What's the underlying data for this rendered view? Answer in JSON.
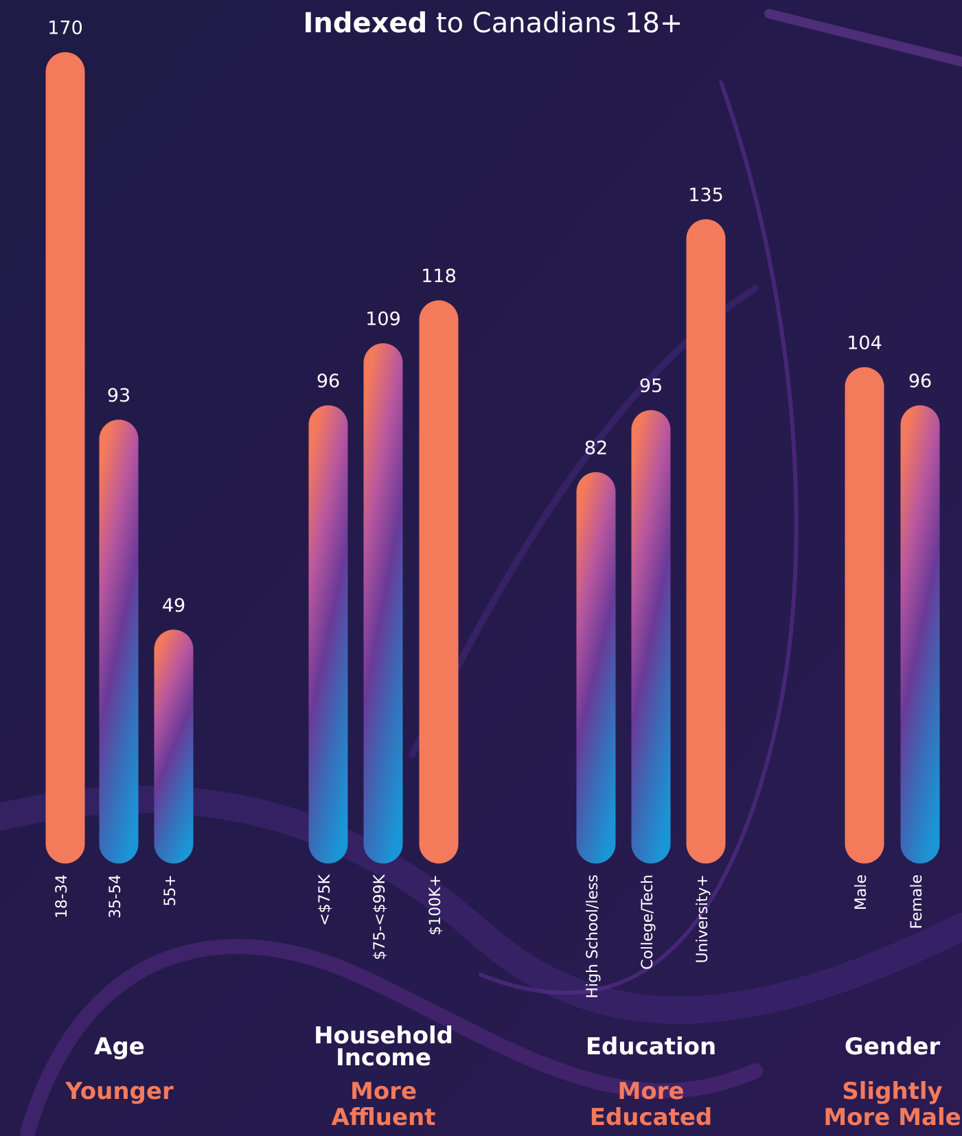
{
  "chart_data": {
    "type": "bar",
    "title": {
      "bold": "Indexed",
      "text": "to Canadians 18+"
    },
    "ylim": [
      0,
      170
    ],
    "highlight_color": "#f47a5c",
    "gradient": [
      "#f47a5c",
      "#b8579e",
      "#6a3a98",
      "#3a6cb8",
      "#1a96d6"
    ],
    "groups": [
      {
        "label": "Age",
        "note": "Younger",
        "categories": [
          "18-34",
          "35-54",
          "55+"
        ],
        "values": [
          170,
          93,
          49
        ],
        "highlight": 0
      },
      {
        "label": "Household Income",
        "note": "More Affluent",
        "categories": [
          "<$75K",
          "$75-<$99K",
          "$100K+"
        ],
        "values": [
          96,
          109,
          118
        ],
        "highlight": 2
      },
      {
        "label": "Education",
        "note": "More Educated",
        "categories": [
          "High School/less",
          "College/Tech",
          "University+"
        ],
        "values": [
          82,
          95,
          135
        ],
        "highlight": 2
      },
      {
        "label": "Gender",
        "note": "Slightly More Male",
        "categories": [
          "Male",
          "Female"
        ],
        "values": [
          104,
          96
        ],
        "highlight": 0
      }
    ]
  }
}
